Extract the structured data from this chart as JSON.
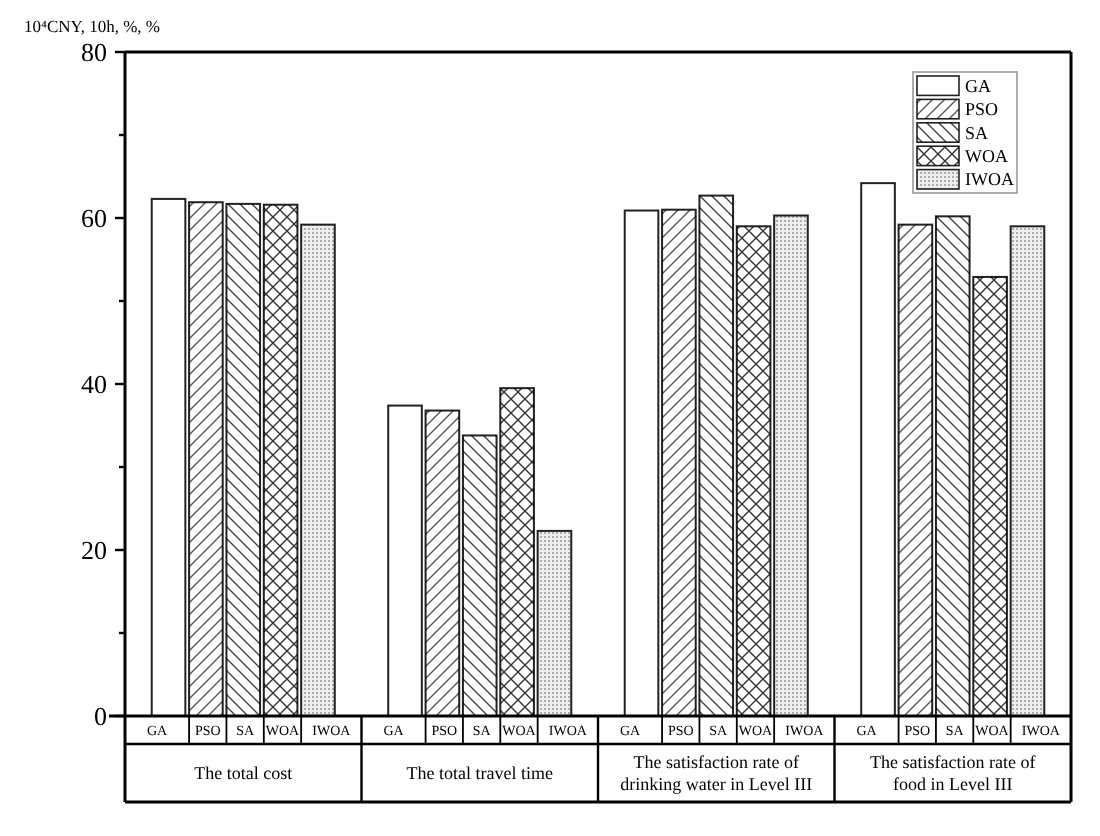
{
  "chart_data": {
    "type": "bar",
    "ylabel": "10⁴CNY, 10h, %, %",
    "categories": [
      "The total cost",
      "The total travel time",
      "The satisfaction rate of drinking water in Level III",
      "The satisfaction rate of food in Level III"
    ],
    "series": [
      {
        "name": "GA",
        "color": "#ffffff",
        "values": [
          62.3,
          37.4,
          60.9,
          64.2
        ]
      },
      {
        "name": "PSO",
        "color": "#ffffff",
        "values": [
          61.9,
          36.8,
          61.0,
          59.2
        ]
      },
      {
        "name": "SA",
        "color": "#ffffff",
        "values": [
          61.7,
          33.8,
          62.7,
          60.2
        ]
      },
      {
        "name": "WOA",
        "color": "#ffffff",
        "values": [
          61.6,
          39.5,
          59.0,
          52.9
        ]
      },
      {
        "name": "IWOA",
        "color": "#eeeeee",
        "values": [
          59.2,
          22.3,
          60.3,
          59.0
        ]
      }
    ],
    "ylim": [
      0,
      80
    ],
    "yticks": [
      0,
      {
        "value": 10,
        "label": null
      },
      20,
      {
        "value": 30,
        "label": null
      },
      40,
      {
        "value": 50,
        "label": null
      },
      60,
      {
        "value": 70,
        "label": null
      },
      80
    ],
    "legend": "top right"
  }
}
